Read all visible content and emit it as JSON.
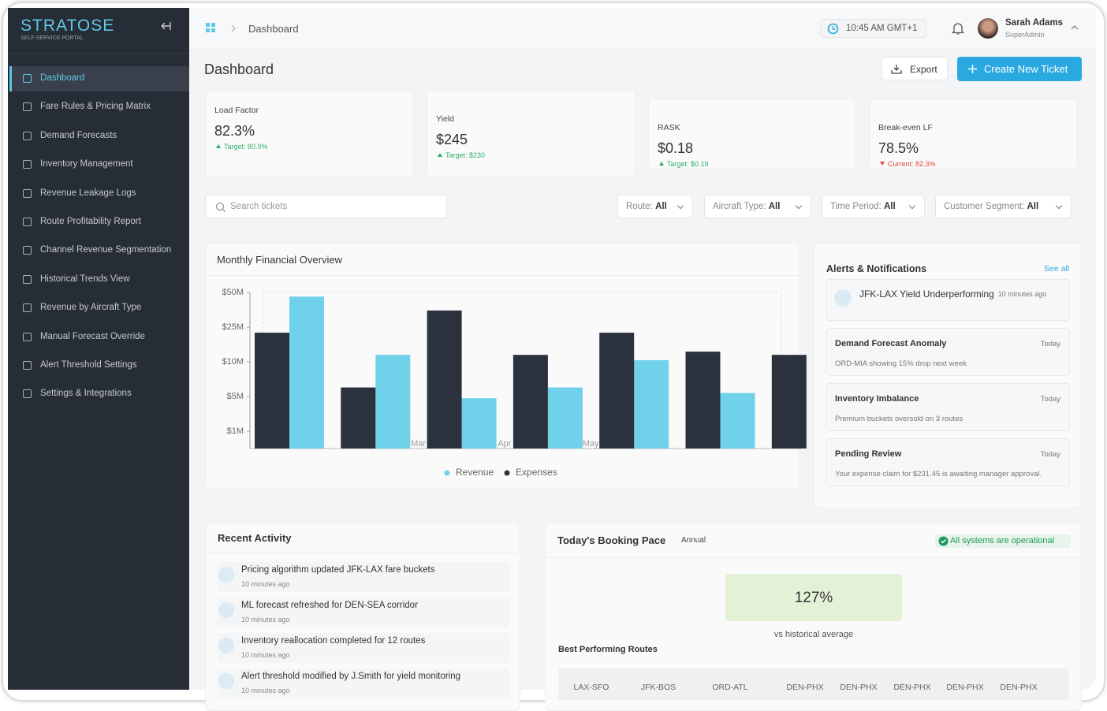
{
  "brand": {
    "name": "STRATOSE",
    "tagline": "SELF-SERVICE PORTAL"
  },
  "nav": {
    "active": 0,
    "items": [
      "Dashboard",
      "Fare Rules & Pricing Matrix",
      "Demand Forecasts",
      "Inventory Management",
      "Revenue Leakage Logs",
      "Route Profitability Report",
      "Channel Revenue Segmentation",
      "Historical Trends View",
      "Revenue by Aircraft Type",
      "Manual Forecast Override",
      "Alert Threshold Settings",
      "Settings & Integrations"
    ]
  },
  "header": {
    "breadcrumb": "Dashboard",
    "time": "10:45 AM GMT+1",
    "user": {
      "name": "Sarah Adams",
      "role": "SuperAdmin"
    }
  },
  "page": {
    "title": "Dashboard",
    "actions": [
      "Export",
      "Create New Ticket"
    ]
  },
  "kpis": [
    {
      "label": "Load Factor",
      "value": "82.3%",
      "note": "Target: 80.0%",
      "trend": "up"
    },
    {
      "label": "Yield",
      "value": "$245",
      "note": "Target: $230",
      "trend": "up"
    },
    {
      "label": "RASK",
      "value": "$0.18",
      "note": "Target: $0.19",
      "trend": "up"
    },
    {
      "label": "Break-even LF",
      "value": "78.5%",
      "note": "Current: 82.3%",
      "trend": "down"
    }
  ],
  "filters": {
    "search": "Search tickets",
    "items": [
      {
        "label": "Route:",
        "value": "All"
      },
      {
        "label": "Aircraft Type:",
        "value": "All"
      },
      {
        "label": "Time Period:",
        "value": "All"
      },
      {
        "label": "Customer Segment:",
        "value": "All"
      }
    ]
  },
  "chart_data": {
    "type": "bar",
    "title": "Monthly Financial Overview",
    "categories": [
      null,
      null,
      "Mar",
      "Apr",
      "May",
      null,
      null
    ],
    "series": [
      {
        "name": "Revenue",
        "color": "#6fd1ea",
        "values": [
          47,
          13,
          4.8,
          6.3,
          10.7,
          5.5,
          null
        ]
      },
      {
        "name": "Expenses",
        "color": "#2c323d",
        "values": [
          22.6,
          6.3,
          37,
          13,
          22.6,
          14.4,
          13
        ]
      }
    ],
    "ylim": [
      0,
      50
    ],
    "yticks": [
      {
        "value": 1,
        "label": "$1M"
      },
      {
        "value": 5,
        "label": "$5M"
      },
      {
        "value": 10,
        "label": "$10M"
      },
      {
        "value": 25,
        "label": "$25M"
      },
      {
        "value": 50,
        "label": "$50M"
      }
    ],
    "legend": "bottom"
  },
  "alerts": {
    "title": "Alerts & Notifications",
    "link": "See all",
    "items": [
      {
        "title": "JFK-LAX Yield Underperforming",
        "time": "10 minutes ago"
      },
      {
        "title": "Demand Forecast Anomaly",
        "time": "Today",
        "text": "ORD-MIA showing 15% drop next week"
      },
      {
        "title": "Inventory Imbalance",
        "time": "Today",
        "text": "Premium buckets oversold on 3 routes"
      },
      {
        "title": "Pending Review",
        "time": "Today",
        "text": "Your expense claim for $231.45 is awaiting manager approval."
      }
    ]
  },
  "recent": {
    "title": "Recent Activity",
    "items": [
      {
        "text": "Pricing algorithm updated JFK-LAX fare buckets",
        "time": "10 minutes ago"
      },
      {
        "text": "ML forecast refreshed for DEN-SEA corridor",
        "time": "10 minutes ago"
      },
      {
        "text": "Inventory reallocation completed for 12 routes",
        "time": "10 minutes ago"
      },
      {
        "text": "Alert threshold modified by J.Smith for yield monitoring",
        "time": "10 minutes ago"
      }
    ]
  },
  "booking": {
    "title": "Today's Booking Pace",
    "period": "Annual",
    "status": "All systems are operational",
    "value": "127%",
    "caption": "vs historical average",
    "routes_title": "Best Performing Routes",
    "routes": [
      "LAX-SFO",
      "JFK-BOS",
      "ORD-ATL",
      "DEN-PHX",
      "DEN-PHX",
      "DEN-PHX",
      "DEN-PHX",
      "DEN-PHX"
    ]
  }
}
